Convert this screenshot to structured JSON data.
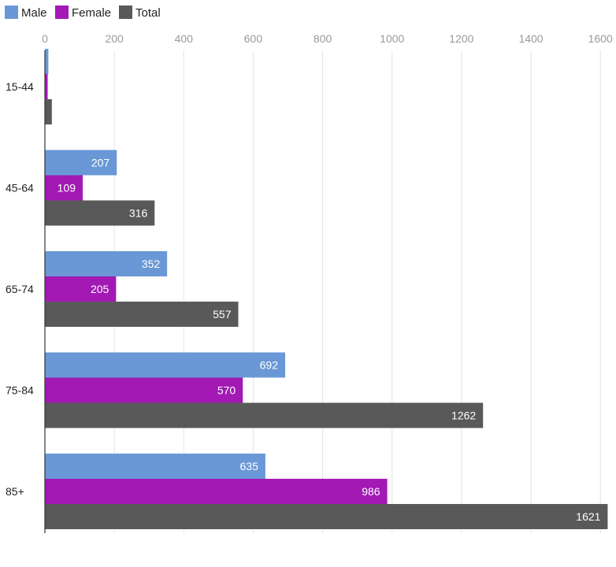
{
  "chart_data": {
    "type": "bar",
    "orientation": "horizontal",
    "categories": [
      "15-44",
      "45-64",
      "65-74",
      "75-84",
      "85+"
    ],
    "series": [
      {
        "name": "Male",
        "color": "#6a98d6",
        "values": [
          10,
          207,
          352,
          692,
          635
        ],
        "labels": [
          "",
          "207",
          "352",
          "692",
          "635"
        ]
      },
      {
        "name": "Female",
        "color": "#a219b4",
        "values": [
          8,
          109,
          205,
          570,
          986
        ],
        "labels": [
          "",
          "109",
          "205",
          "570",
          "986"
        ]
      },
      {
        "name": "Total",
        "color": "#595959",
        "values": [
          20,
          316,
          557,
          1262,
          1621
        ],
        "labels": [
          "",
          "316",
          "557",
          "1262",
          "1621"
        ]
      }
    ],
    "xlim": [
      0,
      1620
    ],
    "xticks": [
      0,
      200,
      400,
      600,
      800,
      1000,
      1200,
      1400,
      1600
    ],
    "xtick_labels": [
      "0",
      "200",
      "400",
      "600",
      "800",
      "1000",
      "1200",
      "1400",
      "1600"
    ],
    "x_axis_position": "top",
    "grid": true,
    "legend_position": "top-left",
    "title": "",
    "xlabel": "",
    "ylabel": ""
  }
}
